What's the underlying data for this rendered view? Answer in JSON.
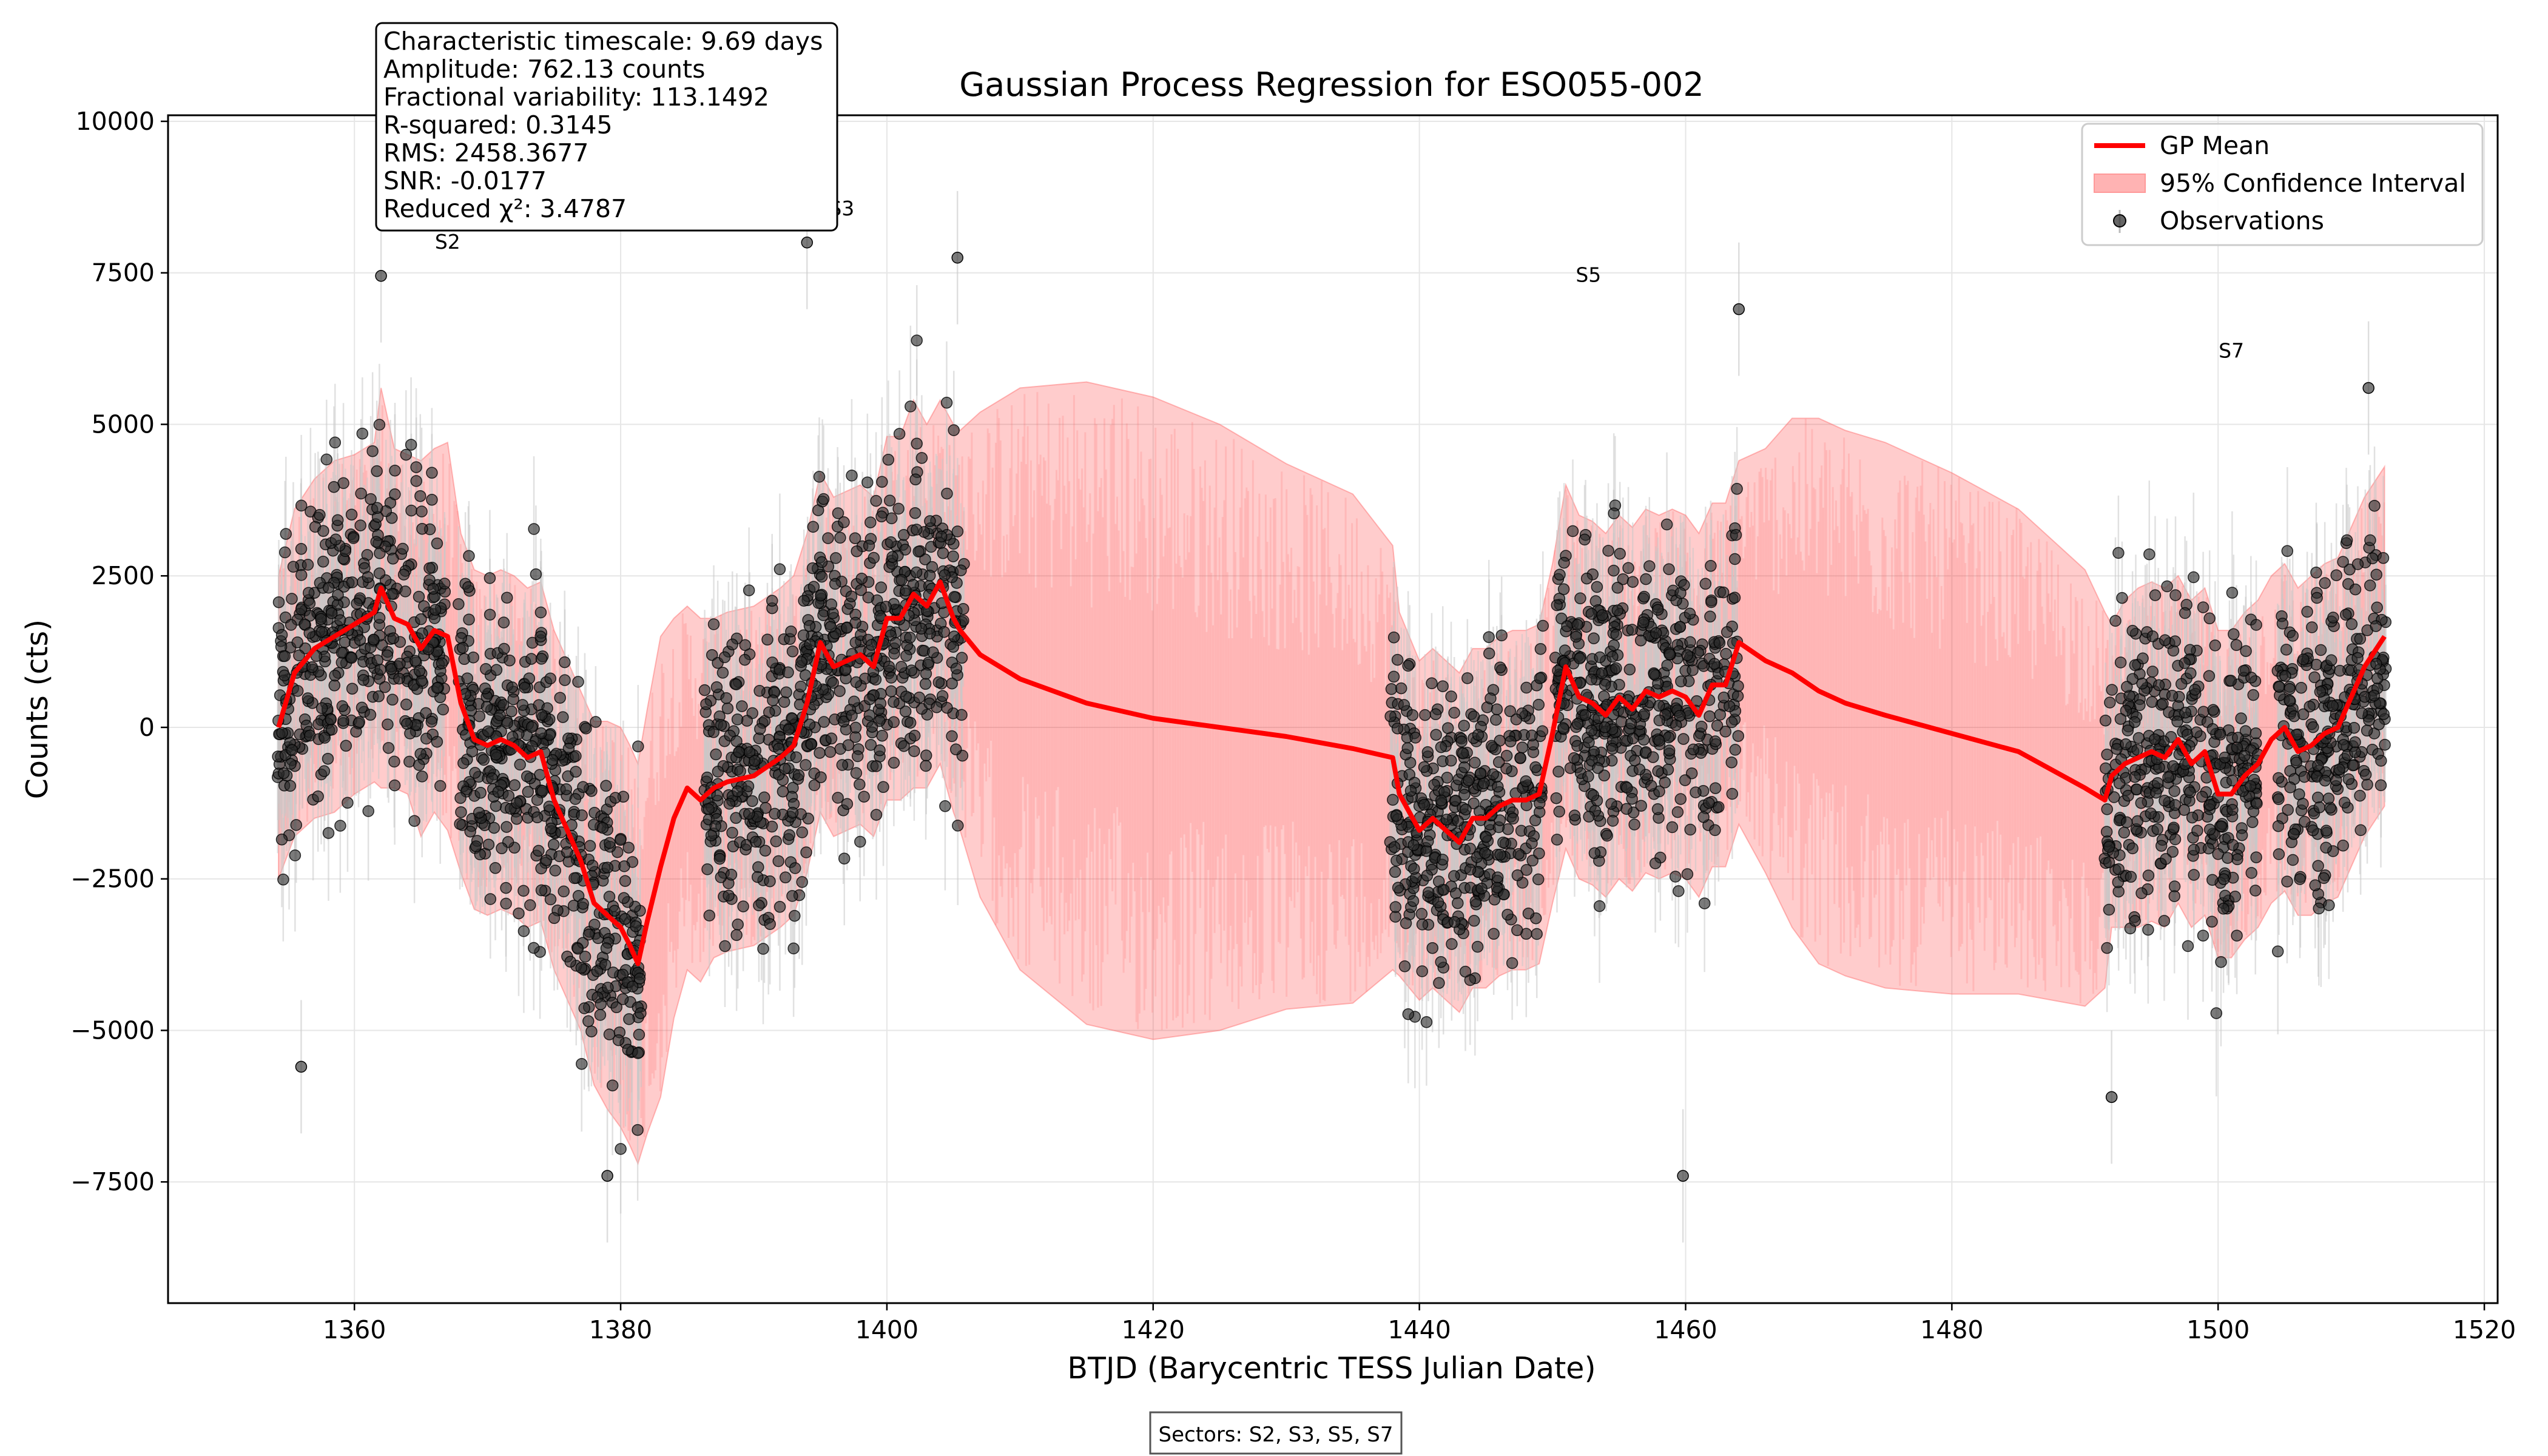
{
  "chart_data": {
    "type": "scatter",
    "title": "Gaussian Process Regression for ESO055-002",
    "xlabel": "BTJD (Barycentric TESS Julian Date)",
    "ylabel": "Counts (cts)",
    "xlim": [
      1346,
      1521
    ],
    "ylim": [
      -9500,
      10100
    ],
    "x_ticks": [
      1360,
      1380,
      1400,
      1420,
      1440,
      1460,
      1480,
      1500,
      1520
    ],
    "y_ticks": [
      -7500,
      -5000,
      -2500,
      0,
      2500,
      5000,
      7500,
      10000
    ],
    "y_tick_labels": [
      "−7500",
      "−5000",
      "−2500",
      "0",
      "2500",
      "5000",
      "7500",
      "10000"
    ],
    "grid": true,
    "legend_position": "top-right",
    "legend": [
      {
        "label": "GP Mean",
        "kind": "line",
        "color": "#ff0000"
      },
      {
        "label": "95% Confidence Interval",
        "kind": "patch",
        "color": "#ffb3b3"
      },
      {
        "label": "Observations",
        "kind": "marker",
        "color": "#333333"
      }
    ],
    "stats_box": [
      "Characteristic timescale: 9.69 days",
      "Amplitude: 762.13 counts",
      "Fractional variability: 113.1492",
      "R-squared: 0.3145",
      "RMS: 2458.3677",
      "SNR: -0.0177",
      "Reduced χ²: 3.4787"
    ],
    "sector_labels": [
      {
        "text": "S2",
        "x": 1367,
        "y": 7900
      },
      {
        "text": "S3",
        "x": 1396.6,
        "y": 8450
      },
      {
        "text": "S5",
        "x": 1452.7,
        "y": 7350
      },
      {
        "text": "S7",
        "x": 1501,
        "y": 6100
      }
    ],
    "footer_note": "Sectors: S2, S3, S5, S7",
    "gp_mean": {
      "name": "GP Mean",
      "x": [
        1354.3,
        1355.5,
        1357,
        1358.5,
        1360,
        1361.5,
        1362,
        1363,
        1364,
        1365,
        1366,
        1367,
        1368,
        1369,
        1370,
        1371,
        1372,
        1373,
        1374,
        1375,
        1376,
        1377,
        1378,
        1379,
        1380,
        1380.7,
        1381.3,
        1382,
        1383,
        1384,
        1385,
        1386,
        1387,
        1388,
        1390,
        1392,
        1393,
        1394,
        1395,
        1396,
        1397,
        1398,
        1399,
        1400,
        1401,
        1402,
        1403,
        1404,
        1405,
        1405.5,
        1407,
        1410,
        1415,
        1420,
        1425,
        1430,
        1435,
        1438,
        1438.5,
        1440,
        1441,
        1442,
        1443,
        1444,
        1445,
        1446,
        1447,
        1448,
        1449,
        1450,
        1451,
        1452,
        1453,
        1454,
        1455,
        1456,
        1457,
        1458,
        1459,
        1460,
        1461,
        1462,
        1463,
        1464,
        1466,
        1468,
        1470,
        1472,
        1475,
        1480,
        1485,
        1490,
        1491.5,
        1492,
        1493,
        1494,
        1495,
        1496,
        1497,
        1498,
        1499,
        1500,
        1501,
        1502,
        1503,
        1504,
        1505,
        1506,
        1507,
        1508,
        1509,
        1510,
        1511,
        1512.5
      ],
      "y": [
        0,
        900,
        1300,
        1500,
        1700,
        1900,
        2300,
        1800,
        1700,
        1300,
        1600,
        1500,
        400,
        -200,
        -300,
        -200,
        -300,
        -500,
        -400,
        -1200,
        -1700,
        -2200,
        -2900,
        -3100,
        -3300,
        -3600,
        -3900,
        -3200,
        -2300,
        -1500,
        -1000,
        -1200,
        -1000,
        -900,
        -800,
        -500,
        -300,
        400,
        1400,
        1000,
        1100,
        1200,
        1000,
        1800,
        1800,
        2200,
        2000,
        2400,
        1800,
        1600,
        1200,
        800,
        400,
        150,
        0,
        -150,
        -350,
        -500,
        -1100,
        -1700,
        -1500,
        -1700,
        -1900,
        -1500,
        -1500,
        -1300,
        -1200,
        -1200,
        -1100,
        -100,
        1000,
        500,
        400,
        200,
        500,
        300,
        600,
        500,
        600,
        500,
        200,
        700,
        700,
        1400,
        1100,
        900,
        600,
        400,
        200,
        -100,
        -400,
        -1000,
        -1200,
        -800,
        -600,
        -500,
        -400,
        -500,
        -200,
        -600,
        -400,
        -1100,
        -1100,
        -800,
        -600,
        -200,
        0,
        -400,
        -300,
        -100,
        0,
        500,
        1000,
        1500
      ],
      "ci_half_width": [
        2500,
        2700,
        2800,
        2900,
        2800,
        2800,
        3300,
        2800,
        2800,
        3100,
        3000,
        3200,
        2800,
        2800,
        2800,
        2800,
        2800,
        2800,
        2800,
        2800,
        2800,
        2800,
        3000,
        3200,
        3300,
        3300,
        3300,
        3500,
        3800,
        3300,
        3000,
        3000,
        2800,
        2800,
        2800,
        2800,
        2800,
        2800,
        2800,
        2800,
        2800,
        2800,
        2800,
        3000,
        3000,
        3200,
        3000,
        3000,
        3200,
        3300,
        4000,
        4800,
        5300,
        5300,
        5000,
        4500,
        4200,
        3500,
        3000,
        2800,
        2800,
        2800,
        2800,
        2800,
        2800,
        2800,
        2800,
        2800,
        2800,
        2800,
        3000,
        3000,
        3000,
        3000,
        3000,
        3000,
        3000,
        3000,
        3000,
        3000,
        3000,
        3000,
        3000,
        3000,
        3500,
        4200,
        4500,
        4500,
        4500,
        4300,
        4000,
        3600,
        3100,
        2500,
        2700,
        2800,
        2800,
        2800,
        2700,
        2700,
        2700,
        2700,
        2700,
        2700,
        2700,
        2700,
        2700,
        2700,
        2800,
        2800,
        2800,
        2800,
        2800,
        2800
      ]
    },
    "observations": {
      "name": "Observations",
      "segments": [
        [
          1354.2,
          1366.8
        ],
        [
          1367.8,
          1381.6
        ],
        [
          1386.3,
          1405.8
        ],
        [
          1437.8,
          1449.3
        ],
        [
          1450.2,
          1464.0
        ],
        [
          1491.4,
          1503.0
        ],
        [
          1504.4,
          1512.6
        ]
      ],
      "notable_points": [
        {
          "x": 1362,
          "y": 7450
        },
        {
          "x": 1356,
          "y": -5600
        },
        {
          "x": 1379,
          "y": -7400
        },
        {
          "x": 1394,
          "y": 8000
        },
        {
          "x": 1405.3,
          "y": 7750
        },
        {
          "x": 1459.8,
          "y": -7400
        },
        {
          "x": 1464,
          "y": 6900
        },
        {
          "x": 1511.3,
          "y": 5600
        },
        {
          "x": 1492,
          "y": -6100
        }
      ]
    }
  }
}
